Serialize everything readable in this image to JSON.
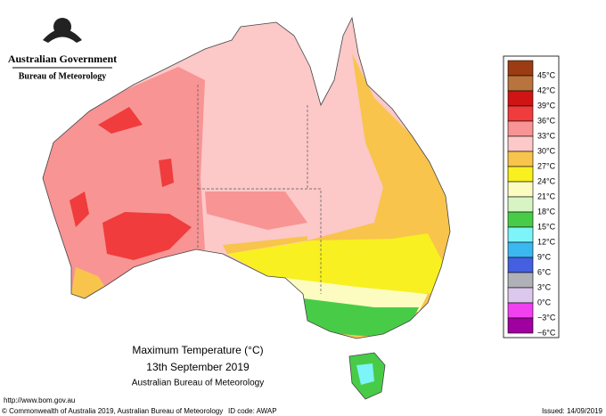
{
  "header": {
    "title": "Australian Government",
    "subtitle": "Bureau of Meteorology"
  },
  "legend": [
    {
      "label": "45°C",
      "color": "#9c3c14"
    },
    {
      "label": "42°C",
      "color": "#b8743c"
    },
    {
      "label": "39°C",
      "color": "#d01414"
    },
    {
      "label": "36°C",
      "color": "#f03c3c"
    },
    {
      "label": "33°C",
      "color": "#f89494"
    },
    {
      "label": "30°C",
      "color": "#fcc8c8"
    },
    {
      "label": "27°C",
      "color": "#f8c44c"
    },
    {
      "label": "24°C",
      "color": "#f8f020"
    },
    {
      "label": "21°C",
      "color": "#fcfcc0"
    },
    {
      "label": "18°C",
      "color": "#d8f4c4"
    },
    {
      "label": "15°C",
      "color": "#48cc48"
    },
    {
      "label": "12°C",
      "color": "#7cf4f8"
    },
    {
      "label": "9°C",
      "color": "#3cb8f0"
    },
    {
      "label": "6°C",
      "color": "#4460e0"
    },
    {
      "label": "3°C",
      "color": "#b0b0b8"
    },
    {
      "label": "0°C",
      "color": "#dcc8ec"
    },
    {
      "label": "−3°C",
      "color": "#f040f0"
    },
    {
      "label": "−6°C",
      "color": "#a000a0"
    }
  ],
  "caption": {
    "title": "Maximum Temperature (°C)",
    "date": "13th September 2019",
    "source": "Australian Bureau of Meteorology"
  },
  "footer": {
    "url": "http://www.bom.gov.au",
    "copyright": "© Commonwealth of Australia 2019, Australian Bureau of Meteorology",
    "id": "ID code: AWAP",
    "issued": "Issued: 14/09/2019"
  }
}
